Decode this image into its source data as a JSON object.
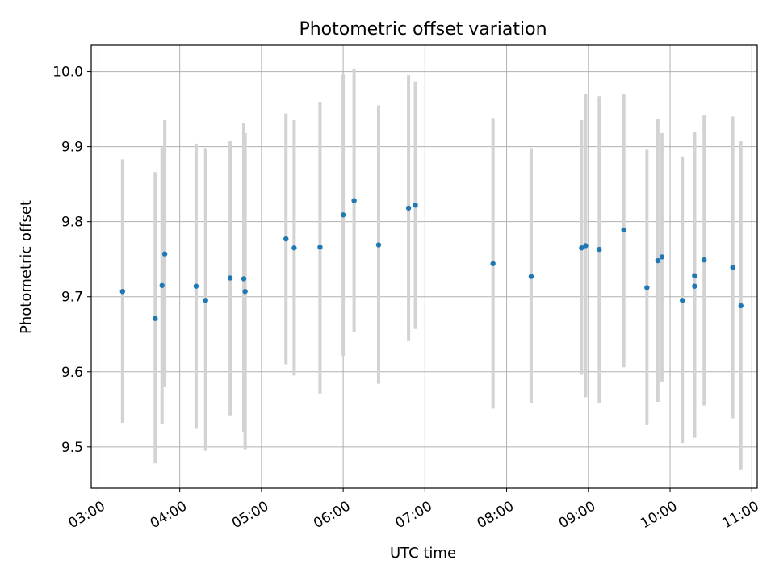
{
  "chart_data": {
    "type": "scatter",
    "title": "Photometric offset variation",
    "xlabel": "UTC time",
    "ylabel": "Photometric offset",
    "xlim": [
      "02:55",
      "11:04"
    ],
    "ylim": [
      9.445,
      10.035
    ],
    "grid": true,
    "x_ticks": [
      "03:00",
      "04:00",
      "05:00",
      "06:00",
      "07:00",
      "08:00",
      "09:00",
      "10:00",
      "11:00"
    ],
    "y_ticks": [
      "9.5",
      "9.6",
      "9.7",
      "9.8",
      "9.9",
      "10.0"
    ],
    "colors": {
      "point": "#1f77b4",
      "errorbar": "#d3d3d3",
      "grid": "#b0b0b0"
    },
    "points": [
      {
        "x": "03:18",
        "y": 9.707,
        "ylo": 9.532,
        "yhi": 9.883
      },
      {
        "x": "03:42",
        "y": 9.671,
        "ylo": 9.478,
        "yhi": 9.866
      },
      {
        "x": "03:47",
        "y": 9.715,
        "ylo": 9.531,
        "yhi": 9.899
      },
      {
        "x": "03:49",
        "y": 9.757,
        "ylo": 9.58,
        "yhi": 9.935
      },
      {
        "x": "04:12",
        "y": 9.714,
        "ylo": 9.524,
        "yhi": 9.904
      },
      {
        "x": "04:19",
        "y": 9.695,
        "ylo": 9.495,
        "yhi": 9.897
      },
      {
        "x": "04:37",
        "y": 9.725,
        "ylo": 9.542,
        "yhi": 9.907
      },
      {
        "x": "04:47",
        "y": 9.724,
        "ylo": 9.52,
        "yhi": 9.931
      },
      {
        "x": "04:48",
        "y": 9.707,
        "ylo": 9.496,
        "yhi": 9.918
      },
      {
        "x": "05:18",
        "y": 9.777,
        "ylo": 9.61,
        "yhi": 9.944
      },
      {
        "x": "05:24",
        "y": 9.765,
        "ylo": 9.595,
        "yhi": 9.935
      },
      {
        "x": "05:43",
        "y": 9.766,
        "ylo": 9.571,
        "yhi": 9.959
      },
      {
        "x": "06:00",
        "y": 9.809,
        "ylo": 9.621,
        "yhi": 9.996
      },
      {
        "x": "06:08",
        "y": 9.828,
        "ylo": 9.653,
        "yhi": 10.004
      },
      {
        "x": "06:26",
        "y": 9.769,
        "ylo": 9.584,
        "yhi": 9.955
      },
      {
        "x": "06:48",
        "y": 9.818,
        "ylo": 9.642,
        "yhi": 9.995
      },
      {
        "x": "06:53",
        "y": 9.822,
        "ylo": 9.657,
        "yhi": 9.987
      },
      {
        "x": "07:50",
        "y": 9.744,
        "ylo": 9.551,
        "yhi": 9.938
      },
      {
        "x": "08:18",
        "y": 9.727,
        "ylo": 9.558,
        "yhi": 9.897
      },
      {
        "x": "08:55",
        "y": 9.765,
        "ylo": 9.596,
        "yhi": 9.935
      },
      {
        "x": "08:58",
        "y": 9.768,
        "ylo": 9.566,
        "yhi": 9.97
      },
      {
        "x": "09:08",
        "y": 9.763,
        "ylo": 9.558,
        "yhi": 9.967
      },
      {
        "x": "09:26",
        "y": 9.789,
        "ylo": 9.606,
        "yhi": 9.97
      },
      {
        "x": "09:43",
        "y": 9.712,
        "ylo": 9.529,
        "yhi": 9.896
      },
      {
        "x": "09:51",
        "y": 9.748,
        "ylo": 9.56,
        "yhi": 9.937
      },
      {
        "x": "09:54",
        "y": 9.753,
        "ylo": 9.587,
        "yhi": 9.918
      },
      {
        "x": "10:09",
        "y": 9.695,
        "ylo": 9.505,
        "yhi": 9.887
      },
      {
        "x": "10:18",
        "y": 9.714,
        "ylo": 9.513,
        "yhi": 9.92
      },
      {
        "x": "10:18",
        "y": 9.728,
        "ylo": 9.512,
        "yhi": 9.918
      },
      {
        "x": "10:25",
        "y": 9.749,
        "ylo": 9.555,
        "yhi": 9.942
      },
      {
        "x": "10:46",
        "y": 9.739,
        "ylo": 9.538,
        "yhi": 9.94
      },
      {
        "x": "10:52",
        "y": 9.688,
        "ylo": 9.47,
        "yhi": 9.907
      }
    ]
  }
}
